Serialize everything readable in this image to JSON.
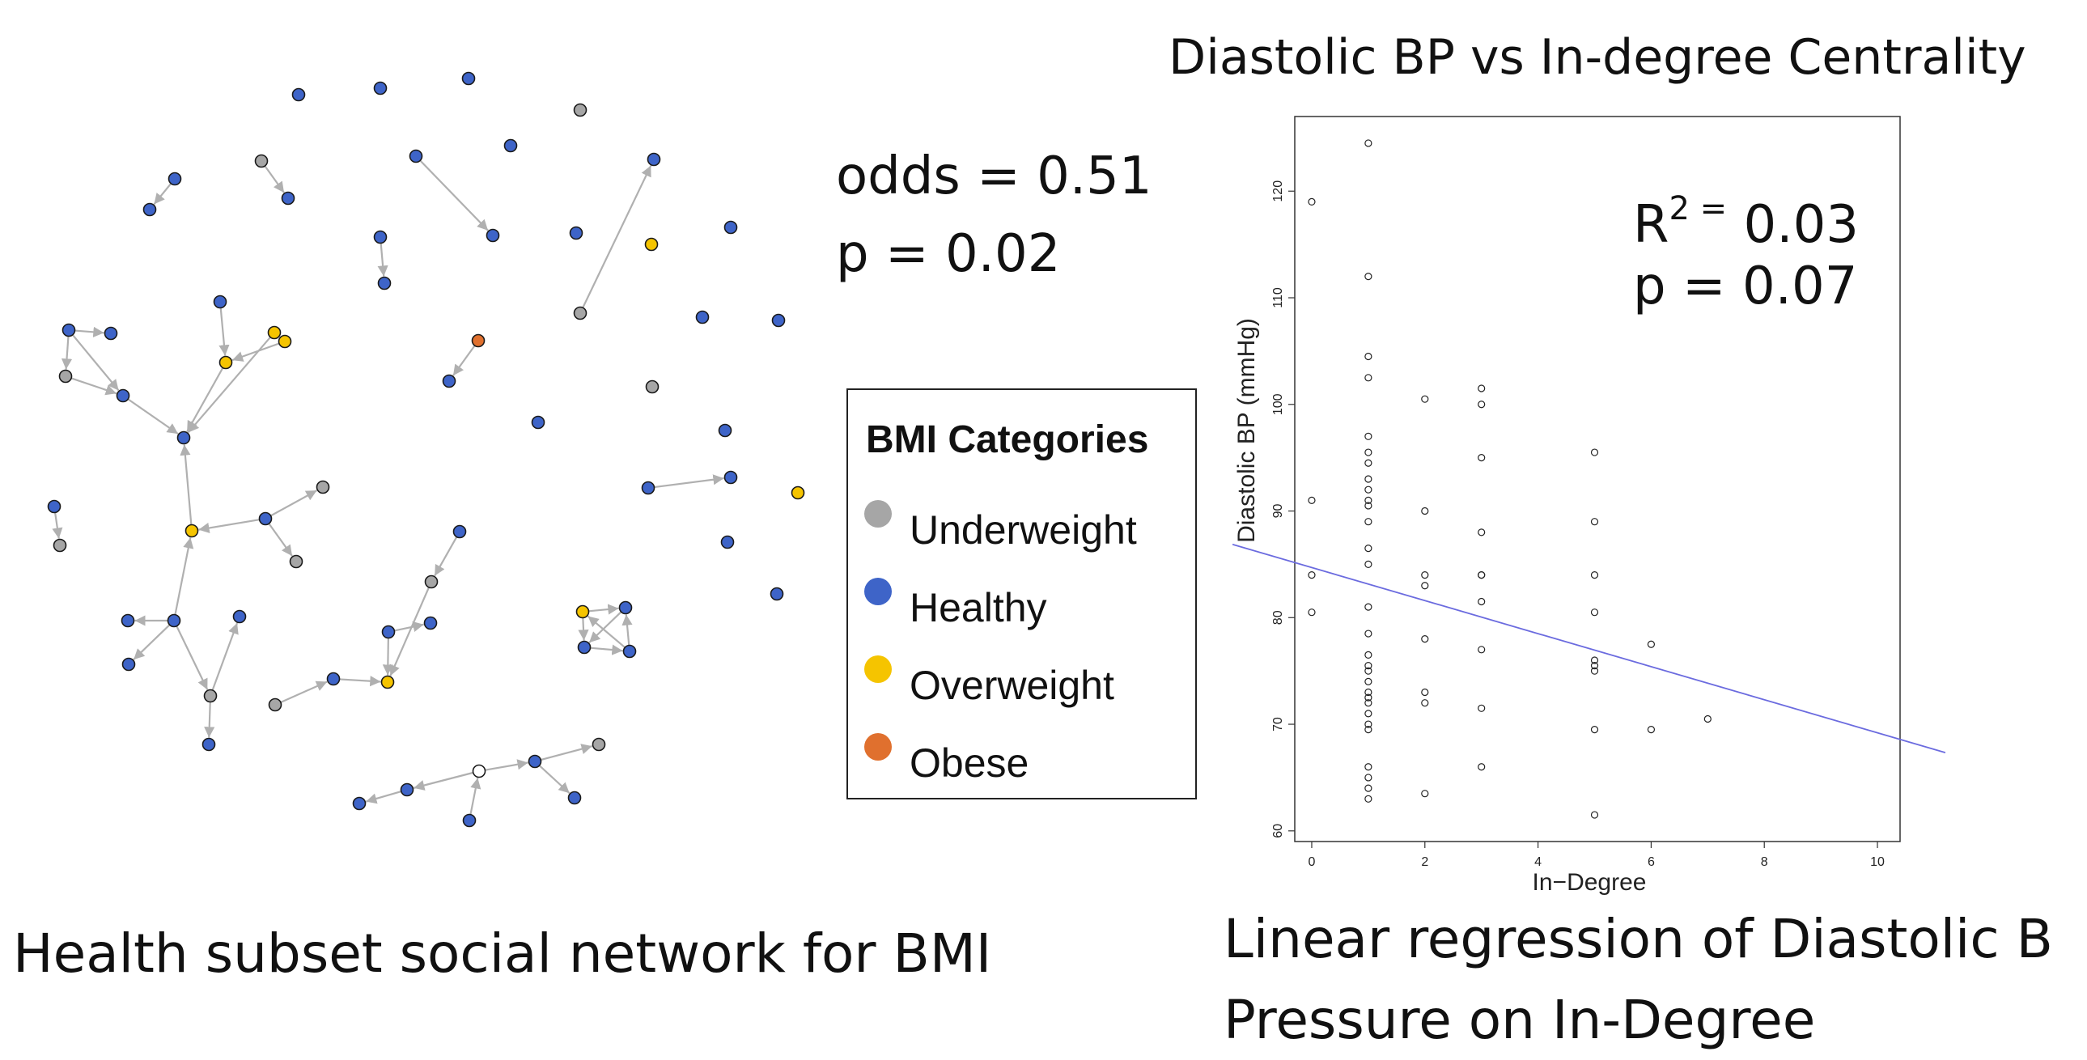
{
  "network": {
    "caption": "Health subset social network for BMI",
    "stats": {
      "odds": "odds = 0.51",
      "p": "p = 0.02"
    },
    "colors": {
      "Underweight": "#a6a6a6",
      "Healthy": "#3e64c8",
      "Overweight": "#f5c400",
      "Obese": "#e0702e",
      "Unknown": "#ffffff",
      "edge": "#b0b0b0"
    },
    "nodes": [
      {
        "id": "a1",
        "cat": "Healthy"
      },
      {
        "id": "a2",
        "cat": "Healthy"
      },
      {
        "id": "a3",
        "cat": "Healthy"
      },
      {
        "id": "a4",
        "cat": "Underweight"
      },
      {
        "id": "a5",
        "cat": "Healthy"
      },
      {
        "id": "a6",
        "cat": "Healthy"
      },
      {
        "id": "a7",
        "cat": "Healthy"
      },
      {
        "id": "b1",
        "cat": "Underweight"
      },
      {
        "id": "b2",
        "cat": "Healthy"
      },
      {
        "id": "b3",
        "cat": "Healthy"
      },
      {
        "id": "b4",
        "cat": "Healthy"
      },
      {
        "id": "c1",
        "cat": "Healthy"
      },
      {
        "id": "c2",
        "cat": "Healthy"
      },
      {
        "id": "c3",
        "cat": "Underweight"
      },
      {
        "id": "c4",
        "cat": "Healthy"
      },
      {
        "id": "c5",
        "cat": "Overweight"
      },
      {
        "id": "c6",
        "cat": "Healthy"
      },
      {
        "id": "d1",
        "cat": "Healthy"
      },
      {
        "id": "d2",
        "cat": "Healthy"
      },
      {
        "id": "d3",
        "cat": "Underweight"
      },
      {
        "id": "d4",
        "cat": "Healthy"
      },
      {
        "id": "d5",
        "cat": "Healthy"
      },
      {
        "id": "e1",
        "cat": "Obese"
      },
      {
        "id": "e2",
        "cat": "Healthy"
      },
      {
        "id": "f1",
        "cat": "Healthy"
      },
      {
        "id": "f2",
        "cat": "Healthy"
      },
      {
        "id": "f3",
        "cat": "Underweight"
      },
      {
        "id": "f4",
        "cat": "Healthy"
      },
      {
        "id": "g1",
        "cat": "Healthy"
      },
      {
        "id": "g2",
        "cat": "Overweight"
      },
      {
        "id": "g3",
        "cat": "Overweight"
      },
      {
        "id": "h1",
        "cat": "Healthy"
      },
      {
        "id": "h2",
        "cat": "Healthy"
      },
      {
        "id": "h3",
        "cat": "Overweight"
      },
      {
        "id": "h4",
        "cat": "Healthy"
      },
      {
        "id": "h5",
        "cat": "Underweight"
      },
      {
        "id": "h6",
        "cat": "Underweight"
      },
      {
        "id": "h7",
        "cat": "Healthy"
      },
      {
        "id": "i1",
        "cat": "Healthy"
      },
      {
        "id": "i2",
        "cat": "Healthy"
      },
      {
        "id": "i3",
        "cat": "Underweight"
      },
      {
        "id": "i4",
        "cat": "Healthy"
      },
      {
        "id": "i5",
        "cat": "Healthy"
      },
      {
        "id": "i6",
        "cat": "Healthy"
      },
      {
        "id": "j1",
        "cat": "Underweight"
      },
      {
        "id": "j2",
        "cat": "Healthy"
      },
      {
        "id": "j3",
        "cat": "Overweight"
      },
      {
        "id": "j4",
        "cat": "Healthy"
      },
      {
        "id": "j5",
        "cat": "Healthy"
      },
      {
        "id": "j6",
        "cat": "Underweight"
      },
      {
        "id": "j7",
        "cat": "Healthy"
      },
      {
        "id": "k1",
        "cat": "Healthy"
      },
      {
        "id": "k2",
        "cat": "Underweight"
      },
      {
        "id": "l1",
        "cat": "Healthy"
      },
      {
        "id": "l2",
        "cat": "Healthy"
      },
      {
        "id": "l3",
        "cat": "Unknown"
      },
      {
        "id": "l4",
        "cat": "Healthy"
      },
      {
        "id": "l5",
        "cat": "Healthy"
      },
      {
        "id": "l6",
        "cat": "Underweight"
      },
      {
        "id": "l7",
        "cat": "Healthy"
      },
      {
        "id": "m1",
        "cat": "Healthy"
      },
      {
        "id": "m2",
        "cat": "Healthy"
      },
      {
        "id": "m3",
        "cat": "Overweight"
      },
      {
        "id": "m4",
        "cat": "Healthy"
      },
      {
        "id": "m5",
        "cat": "Healthy"
      },
      {
        "id": "m6",
        "cat": "Healthy"
      },
      {
        "id": "m7",
        "cat": "Overweight"
      },
      {
        "id": "m8",
        "cat": "Healthy"
      },
      {
        "id": "m9",
        "cat": "Healthy"
      }
    ],
    "edges": [
      [
        "a2",
        "a1"
      ],
      [
        "b1",
        "b2"
      ],
      [
        "b3",
        "b4"
      ],
      [
        "c1",
        "c2"
      ],
      [
        "c3",
        "c4"
      ],
      [
        "e1",
        "e2"
      ],
      [
        "f1",
        "f2"
      ],
      [
        "f1",
        "f3"
      ],
      [
        "f1",
        "f4"
      ],
      [
        "f3",
        "f4"
      ],
      [
        "f4",
        "h1"
      ],
      [
        "g1",
        "g2"
      ],
      [
        "g3",
        "g2"
      ],
      [
        "g2",
        "h1"
      ],
      [
        "g5",
        "h1"
      ],
      [
        "h3",
        "h1"
      ],
      [
        "h4",
        "h3"
      ],
      [
        "h4",
        "h5"
      ],
      [
        "h4",
        "h6"
      ],
      [
        "h7",
        "h3"
      ],
      [
        "h7",
        "i1"
      ],
      [
        "h7",
        "i2"
      ],
      [
        "h7",
        "i3"
      ],
      [
        "i3",
        "i4"
      ],
      [
        "i3",
        "i5"
      ],
      [
        "i6",
        "j1"
      ],
      [
        "j1",
        "j2"
      ],
      [
        "j2",
        "j3"
      ],
      [
        "j4",
        "j3"
      ],
      [
        "j4",
        "j5"
      ],
      [
        "j6",
        "j3"
      ],
      [
        "j7",
        "j6"
      ],
      [
        "k1",
        "k2"
      ],
      [
        "l2",
        "l1"
      ],
      [
        "l3",
        "l2"
      ],
      [
        "l3",
        "l5"
      ],
      [
        "l4",
        "l3"
      ],
      [
        "l5",
        "l6"
      ],
      [
        "l5",
        "l7"
      ],
      [
        "m1",
        "m2"
      ],
      [
        "m3",
        "m4"
      ],
      [
        "m4",
        "m5"
      ],
      [
        "m5",
        "m6"
      ],
      [
        "m6",
        "m3"
      ],
      [
        "m6",
        "m4"
      ],
      [
        "m3",
        "m5"
      ]
    ]
  },
  "legend": {
    "title": "BMI Categories",
    "items": [
      {
        "label": "Underweight",
        "color": "#a6a6a6"
      },
      {
        "label": "Healthy",
        "color": "#3e64c8"
      },
      {
        "label": "Overweight",
        "color": "#f5c400"
      },
      {
        "label": "Obese",
        "color": "#e0702e"
      }
    ]
  },
  "regression": {
    "title": "Diastolic BP vs In-degree Centrality",
    "caption_line1": "Linear regression of Diastolic B",
    "caption_line2": "Pressure on In-Degree",
    "r2_prefix": "R",
    "r2_sup": "2 =",
    "r2_value": " 0.03",
    "p": "p = 0.07"
  },
  "chart_data": {
    "type": "scatter",
    "title": "Diastolic BP vs In-degree Centrality",
    "xlabel": "In−Degree",
    "ylabel": "Diastolic BP (mmHg)",
    "xlim": [
      -0.3,
      10.4
    ],
    "ylim": [
      59,
      127
    ],
    "xticks": [
      0,
      2,
      4,
      6,
      8,
      10
    ],
    "yticks": [
      60,
      70,
      80,
      90,
      100,
      110,
      120
    ],
    "line_color": "#6b6bdf",
    "regression_line": {
      "intercept": 84.7,
      "slope": -1.55
    },
    "points": [
      [
        0,
        119
      ],
      [
        0,
        91
      ],
      [
        0,
        84
      ],
      [
        0,
        80.5
      ],
      [
        1,
        124.5
      ],
      [
        1,
        112
      ],
      [
        1,
        104.5
      ],
      [
        1,
        102.5
      ],
      [
        1,
        97
      ],
      [
        1,
        95.5
      ],
      [
        1,
        94.5
      ],
      [
        1,
        93
      ],
      [
        1,
        92
      ],
      [
        1,
        91
      ],
      [
        1,
        90.5
      ],
      [
        1,
        89
      ],
      [
        1,
        86.5
      ],
      [
        1,
        85
      ],
      [
        1,
        81
      ],
      [
        1,
        78.5
      ],
      [
        1,
        76.5
      ],
      [
        1,
        75.5
      ],
      [
        1,
        75
      ],
      [
        1,
        74
      ],
      [
        1,
        73
      ],
      [
        1,
        72.5
      ],
      [
        1,
        72
      ],
      [
        1,
        71
      ],
      [
        1,
        70
      ],
      [
        1,
        69.5
      ],
      [
        1,
        66
      ],
      [
        1,
        65
      ],
      [
        1,
        64
      ],
      [
        1,
        63
      ],
      [
        2,
        100.5
      ],
      [
        2,
        90
      ],
      [
        2,
        84
      ],
      [
        2,
        83
      ],
      [
        2,
        78
      ],
      [
        2,
        73
      ],
      [
        2,
        72
      ],
      [
        2,
        63.5
      ],
      [
        3,
        101.5
      ],
      [
        3,
        100
      ],
      [
        3,
        95
      ],
      [
        3,
        88
      ],
      [
        3,
        84
      ],
      [
        3,
        84
      ],
      [
        3,
        81.5
      ],
      [
        3,
        77
      ],
      [
        3,
        71.5
      ],
      [
        3,
        66
      ],
      [
        5,
        95.5
      ],
      [
        5,
        89
      ],
      [
        5,
        84
      ],
      [
        5,
        80.5
      ],
      [
        5,
        76
      ],
      [
        5,
        75.5
      ],
      [
        5,
        75
      ],
      [
        5,
        69.5
      ],
      [
        5,
        61.5
      ],
      [
        6,
        77.5
      ],
      [
        6,
        69.5
      ],
      [
        7,
        70.5
      ]
    ]
  }
}
